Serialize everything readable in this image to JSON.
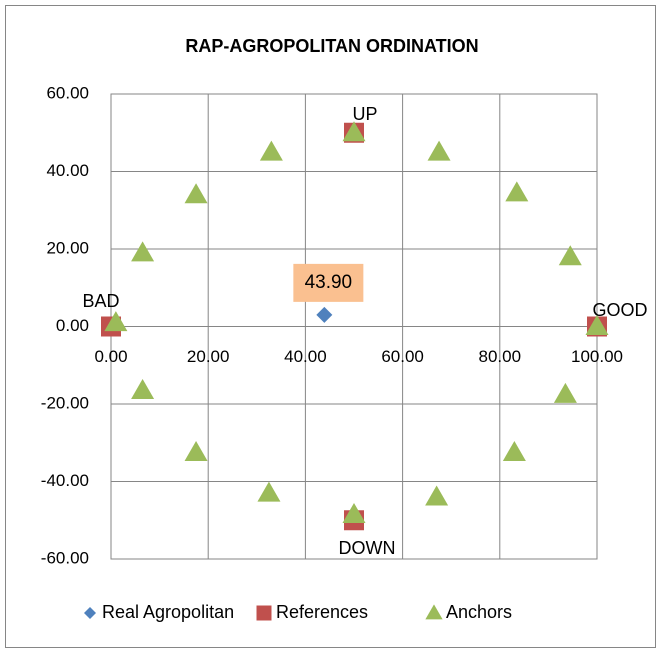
{
  "chart_data": {
    "type": "scatter",
    "title": "RAP-AGROPOLITAN ORDINATION",
    "series": [
      {
        "name": "Real Agropolitan",
        "color": "#4f81bd",
        "marker": "diamond",
        "x": [
          43.9
        ],
        "values": [
          3
        ],
        "value_labels": [
          "43.90"
        ]
      },
      {
        "name": "References",
        "color": "#c0504d",
        "marker": "square",
        "x": [
          0,
          100,
          50,
          50
        ],
        "values": [
          0,
          0,
          50,
          -50
        ]
      },
      {
        "name": "Anchors",
        "color": "#9bbb59",
        "marker": "triangle",
        "x": [
          1,
          6.5,
          17.5,
          33,
          50,
          67.5,
          83.5,
          94.5,
          100,
          93.5,
          83,
          67,
          50,
          32.5,
          17.5,
          6.5
        ],
        "values": [
          1,
          19,
          34,
          45,
          50,
          45,
          34.5,
          18,
          0,
          -17.5,
          -32.5,
          -44,
          -48.5,
          -43,
          -32.5,
          -16.5
        ]
      }
    ],
    "annotations": [
      "BAD",
      "GOOD",
      "UP",
      "DOWN"
    ],
    "xlim": [
      0,
      100
    ],
    "xticks": [
      {
        "value": 0,
        "label": "0.00"
      },
      {
        "value": 20,
        "label": "20.00"
      },
      {
        "value": 40,
        "label": "40.00"
      },
      {
        "value": 60,
        "label": "60.00"
      },
      {
        "value": 80,
        "label": "80.00"
      },
      {
        "value": 100,
        "label": "100.00"
      }
    ],
    "ylim": [
      -60,
      60
    ],
    "yticks": [
      {
        "value": -60,
        "label": "-60.00"
      },
      {
        "value": -40,
        "label": "-40.00"
      },
      {
        "value": -20,
        "label": "-20.00"
      },
      {
        "value": 0,
        "label": "0.00"
      },
      {
        "value": 20,
        "label": "20.00"
      },
      {
        "value": 40,
        "label": "40.00"
      },
      {
        "value": 60,
        "label": "60.00"
      }
    ],
    "grid": true,
    "legend": "bottom"
  }
}
